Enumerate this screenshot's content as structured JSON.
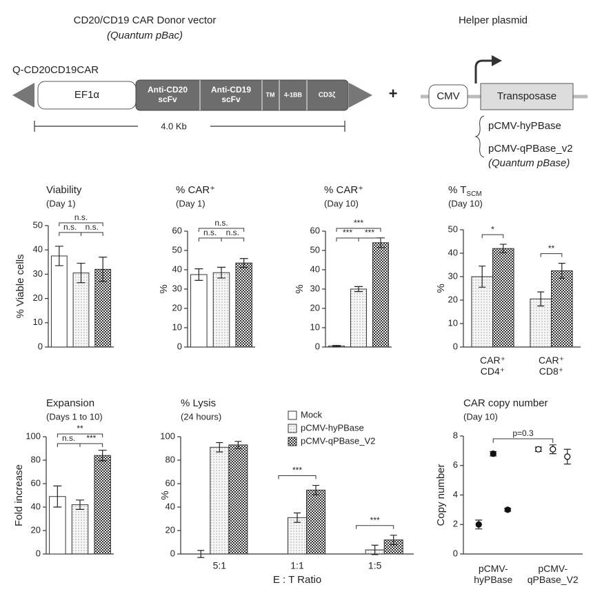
{
  "diagram": {
    "title": "CD20/CD19 CAR Donor vector",
    "subtitle": "(Quantum pBac)",
    "helper_title": "Helper plasmid",
    "construct": "Q-CD20CD19CAR",
    "promoter": "EF1α",
    "segments": [
      "Anti-CD20\nscFv",
      "Anti-CD19\nscFv",
      "TM",
      "4-1BB",
      "CD3ζ"
    ],
    "size": "4.0 Kb",
    "plus": "+",
    "helper_promoter": "CMV",
    "helper_gene": "Transposase",
    "helpers": [
      "pCMV-hyPBase",
      "pCMV-qPBase_v2"
    ],
    "helper_note": "(Quantum pBase)"
  },
  "chart_data": [
    {
      "type": "bar",
      "title": "Viability",
      "subtitle": "(Day 1)",
      "ylabel": "% Viable cells",
      "values": [
        37.5,
        30.5,
        32
      ],
      "errors": [
        4,
        4,
        5
      ],
      "fills": [
        "white",
        "dotted",
        "checkered"
      ],
      "ylim": [
        0,
        50
      ],
      "yticks": [
        0,
        10,
        20,
        30,
        40,
        50
      ],
      "annotations": [
        {
          "text": "n.s.",
          "from": 0,
          "to": 2
        },
        {
          "text": "n.s.",
          "from": 0,
          "to": 1
        },
        {
          "text": "n.s.",
          "from": 1,
          "to": 2
        }
      ]
    },
    {
      "type": "bar",
      "title": "% CAR⁺",
      "subtitle": "(Day 1)",
      "ylabel": "%",
      "values": [
        37.5,
        38.5,
        43.5
      ],
      "errors": [
        3,
        2.8,
        2.3
      ],
      "fills": [
        "white",
        "dotted",
        "checkered"
      ],
      "ylim": [
        0,
        60
      ],
      "yticks": [
        0,
        10,
        20,
        30,
        40,
        50,
        60
      ],
      "annotations": [
        {
          "text": "n.s.",
          "from": 0,
          "to": 2
        },
        {
          "text": "n.s.",
          "from": 0,
          "to": 1
        },
        {
          "text": "n.s.",
          "from": 1,
          "to": 2
        }
      ]
    },
    {
      "type": "bar",
      "title": "% CAR⁺",
      "subtitle": "(Day 10)",
      "ylabel": "%",
      "values": [
        0.5,
        30,
        54
      ],
      "errors": [
        0.3,
        1.3,
        2.5
      ],
      "fills": [
        "white",
        "dotted",
        "checkered"
      ],
      "ylim": [
        0,
        60
      ],
      "yticks": [
        0,
        10,
        20,
        30,
        40,
        50,
        60
      ],
      "annotations": [
        {
          "text": "***",
          "from": 0,
          "to": 2
        },
        {
          "text": "***",
          "from": 0,
          "to": 1
        },
        {
          "text": "***",
          "from": 1,
          "to": 2
        }
      ]
    },
    {
      "type": "grouped_bar",
      "title": "% T",
      "title_subscript": "SCM",
      "subtitle": "(Day 10)",
      "ylabel": "%",
      "categories": [
        "CAR⁺\nCD4⁺",
        "CAR⁺\nCD8⁺"
      ],
      "series": [
        {
          "fill": "dotted",
          "values": [
            30,
            20.5
          ],
          "errors": [
            4.5,
            3
          ]
        },
        {
          "fill": "checkered",
          "values": [
            42,
            32.5
          ],
          "errors": [
            1.8,
            3.2
          ]
        }
      ],
      "ylim": [
        0,
        50
      ],
      "yticks": [
        0,
        10,
        20,
        30,
        40,
        50
      ],
      "annotations": [
        {
          "text": "*",
          "category": 0
        },
        {
          "text": "**",
          "category": 1
        }
      ]
    },
    {
      "type": "bar",
      "title": "Expansion",
      "subtitle": "(Days 1 to 10)",
      "ylabel": "Fold increase",
      "values": [
        49,
        42,
        84
      ],
      "errors": [
        9,
        4,
        4.5
      ],
      "fills": [
        "white",
        "dotted",
        "checkered"
      ],
      "ylim": [
        0,
        100
      ],
      "yticks": [
        0,
        20,
        40,
        60,
        80,
        100
      ],
      "annotations": [
        {
          "text": "**",
          "from": 0,
          "to": 2
        },
        {
          "text": "n.s.",
          "from": 0,
          "to": 1
        },
        {
          "text": "***",
          "from": 1,
          "to": 2
        }
      ]
    },
    {
      "type": "grouped_bar",
      "title": "% Lysis",
      "subtitle": "(24 hours)",
      "ylabel": "%",
      "xlabel": "E : T Ratio",
      "categories": [
        "5:1",
        "1:1",
        "1:5"
      ],
      "series": [
        {
          "name": "Mock",
          "fill": "white",
          "values": [
            0,
            0,
            0
          ],
          "errors": [
            3,
            0,
            0
          ]
        },
        {
          "name": "pCMV-hyPBase",
          "fill": "dotted",
          "values": [
            91,
            31,
            3.5
          ],
          "errors": [
            4,
            4,
            4
          ]
        },
        {
          "name": "pCMV-qPBase_V2",
          "fill": "checkered",
          "values": [
            93,
            54.5,
            12
          ],
          "errors": [
            3,
            4,
            4
          ]
        }
      ],
      "legend": true,
      "ylim": [
        0,
        100
      ],
      "yticks": [
        0,
        20,
        40,
        60,
        80,
        100
      ],
      "annotations": [
        {
          "text": "***",
          "category": 1
        },
        {
          "text": "***",
          "category": 2
        }
      ]
    },
    {
      "type": "dot",
      "title": "CAR copy number",
      "subtitle": "(Day 10)",
      "ylabel": "Copy number",
      "categories": [
        "pCMV-\nhyPBase",
        "pCMV-\nqPBase_V2"
      ],
      "values": [
        [
          2,
          6.8,
          3
        ],
        [
          7.1,
          7.1,
          6.6
        ]
      ],
      "errors": [
        [
          0.3,
          0.15,
          0.1
        ],
        [
          0.15,
          0.3,
          0.5
        ]
      ],
      "markers": [
        "filled",
        "open"
      ],
      "ylim": [
        0,
        8
      ],
      "yticks": [
        0,
        2,
        4,
        6,
        8
      ],
      "annotations": [
        {
          "text": "p=0.3",
          "from": 0,
          "to": 1
        }
      ]
    }
  ]
}
